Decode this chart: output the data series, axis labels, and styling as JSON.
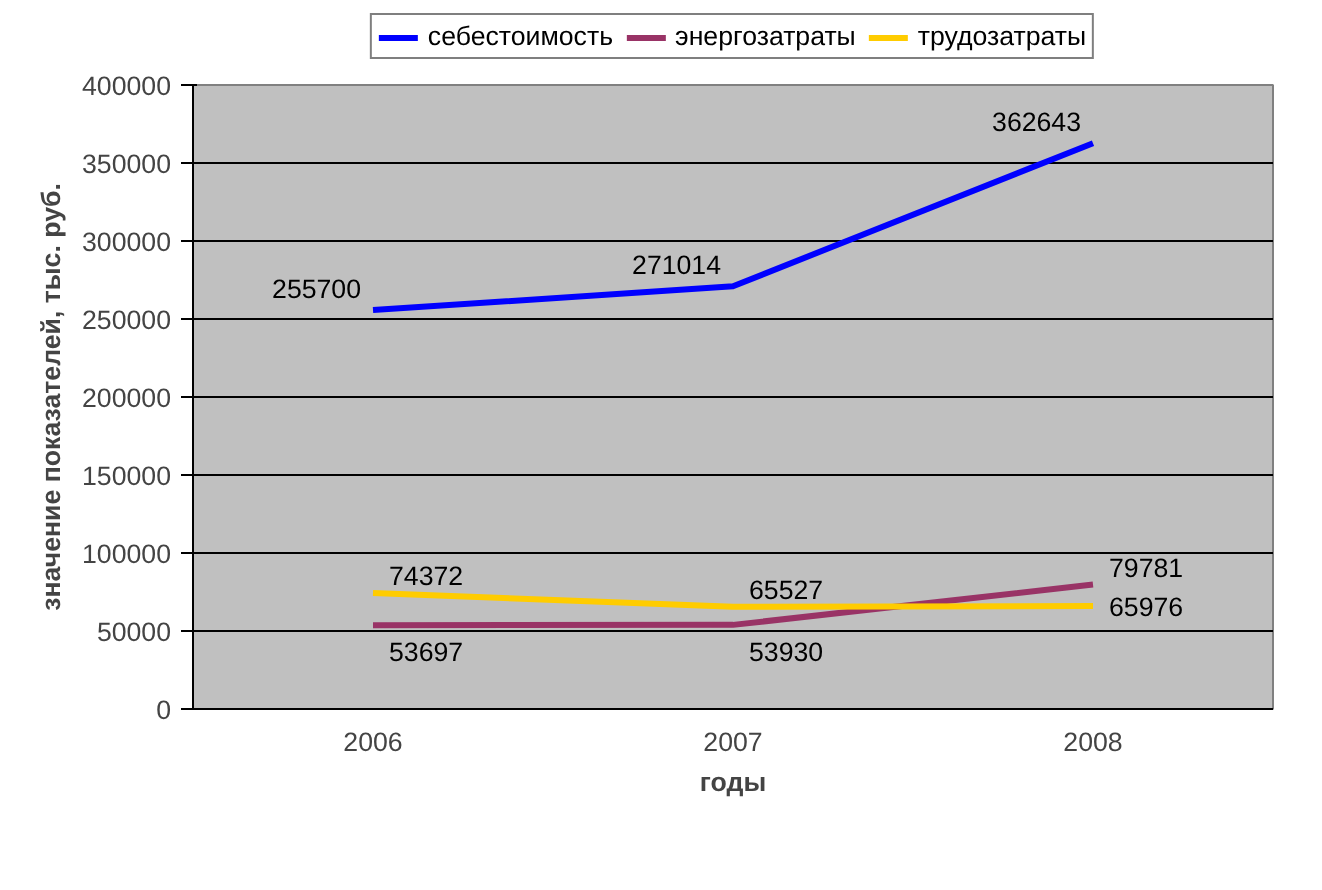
{
  "chart_data": {
    "type": "line",
    "xlabel": "годы",
    "ylabel": "значение показателей, тыс. руб.",
    "categories": [
      "2006",
      "2007",
      "2008"
    ],
    "series": [
      {
        "name": "себестоимость",
        "color": "#0000ff",
        "values": [
          255700,
          271014,
          362643
        ]
      },
      {
        "name": "энергозатраты",
        "color": "#993366",
        "values": [
          53697,
          53930,
          79781
        ]
      },
      {
        "name": "трудозатраты",
        "color": "#ffcc00",
        "values": [
          74372,
          65527,
          65976
        ]
      }
    ],
    "ylim": [
      0,
      400000
    ],
    "yticks": [
      0,
      50000,
      100000,
      150000,
      200000,
      250000,
      300000,
      350000,
      400000
    ],
    "grid": "y",
    "legend": "top",
    "data_labels": true,
    "marker": "none",
    "line_style": "solid"
  }
}
